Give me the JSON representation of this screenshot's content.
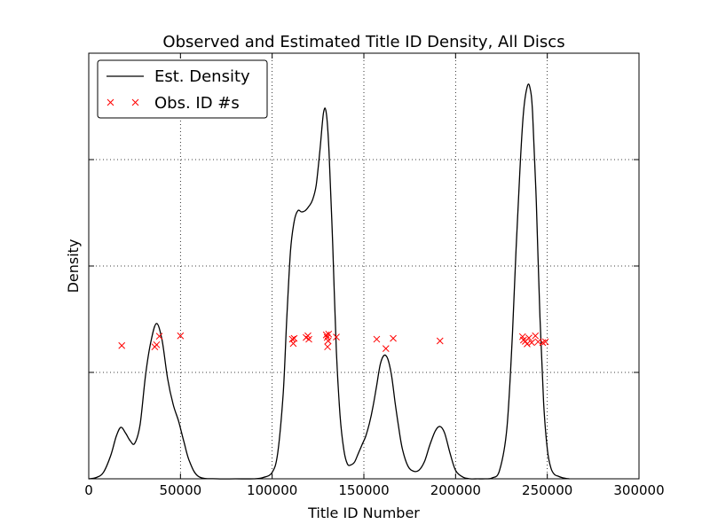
{
  "chart_data": {
    "type": "line",
    "title": "Observed and Estimated Title ID Density, All Discs",
    "xlabel": "Title ID Number",
    "ylabel": "Density",
    "xlim": [
      0,
      300000
    ],
    "ylim": [
      0,
      1
    ],
    "x_ticks": [
      0,
      50000,
      100000,
      150000,
      200000,
      250000,
      300000
    ],
    "x_tick_labels": [
      "0",
      "50000",
      "100000",
      "150000",
      "200000",
      "250000",
      "300000"
    ],
    "y_tick_labels_visible": false,
    "grid": true,
    "legend_position": "top-left",
    "legend": [
      {
        "label": "Est. Density",
        "marker": "line",
        "color": "#000000"
      },
      {
        "label": "Obs. ID #s",
        "marker": "x",
        "color": "#ff0000"
      }
    ],
    "series": [
      {
        "name": "Est. Density",
        "color": "#000000",
        "x": [
          0,
          4000,
          8000,
          12000,
          15000,
          17500,
          20000,
          22500,
          25000,
          28000,
          31000,
          34000,
          37000,
          40000,
          43000,
          46000,
          49000,
          52000,
          55000,
          60000,
          70000,
          80000,
          90000,
          95000,
          100000,
          103000,
          106000,
          108000,
          110000,
          112000,
          114000,
          116000,
          118000,
          120000,
          122000,
          124000,
          126000,
          128000,
          129500,
          131000,
          133000,
          135000,
          137000,
          139000,
          141000,
          143000,
          145000,
          147000,
          149000,
          151000,
          153000,
          155000,
          157000,
          159000,
          161000,
          163000,
          165000,
          167000,
          169000,
          171000,
          174000,
          177000,
          180000,
          183000,
          186000,
          189000,
          191500,
          194000,
          197000,
          200000,
          204000,
          208000,
          212000,
          216000,
          220000,
          224000,
          228000,
          231000,
          233000,
          235000,
          237000,
          239000,
          240500,
          242000,
          244000,
          246000,
          248000,
          250000,
          252000,
          254000,
          256000,
          258000,
          260000,
          262000
        ],
        "y": [
          0.0,
          0.003,
          0.015,
          0.055,
          0.1,
          0.121,
          0.108,
          0.09,
          0.083,
          0.128,
          0.245,
          0.325,
          0.365,
          0.325,
          0.235,
          0.175,
          0.135,
          0.085,
          0.04,
          0.005,
          0.0,
          0.0,
          0.0,
          0.003,
          0.015,
          0.06,
          0.2,
          0.38,
          0.535,
          0.605,
          0.63,
          0.627,
          0.63,
          0.64,
          0.655,
          0.69,
          0.77,
          0.86,
          0.86,
          0.77,
          0.55,
          0.3,
          0.15,
          0.07,
          0.035,
          0.033,
          0.04,
          0.06,
          0.08,
          0.1,
          0.13,
          0.17,
          0.22,
          0.27,
          0.29,
          0.282,
          0.245,
          0.18,
          0.12,
          0.07,
          0.03,
          0.018,
          0.02,
          0.04,
          0.08,
          0.113,
          0.123,
          0.108,
          0.06,
          0.02,
          0.004,
          0.0,
          0.0,
          0.0,
          0.002,
          0.02,
          0.12,
          0.34,
          0.54,
          0.72,
          0.86,
          0.92,
          0.92,
          0.86,
          0.65,
          0.38,
          0.18,
          0.07,
          0.025,
          0.01,
          0.006,
          0.003,
          0.001,
          0.0
        ]
      },
      {
        "name": "Obs. ID #s",
        "color": "#ff0000",
        "marker": "x",
        "x": [
          18000,
          36000,
          37000,
          38500,
          50000,
          111000,
          111500,
          112000,
          118500,
          119500,
          120000,
          129500,
          130000,
          130200,
          130500,
          130800,
          135000,
          157000,
          162000,
          166000,
          191500,
          236500,
          237000,
          238000,
          239000,
          240000,
          241500,
          243500,
          245000,
          247500,
          249000
        ],
        "y": [
          0.313,
          0.31,
          0.315,
          0.335,
          0.336,
          0.328,
          0.318,
          0.33,
          0.332,
          0.336,
          0.328,
          0.338,
          0.332,
          0.31,
          0.324,
          0.34,
          0.333,
          0.328,
          0.306,
          0.33,
          0.324,
          0.334,
          0.326,
          0.323,
          0.317,
          0.331,
          0.32,
          0.336,
          0.322,
          0.32,
          0.322
        ]
      }
    ]
  }
}
